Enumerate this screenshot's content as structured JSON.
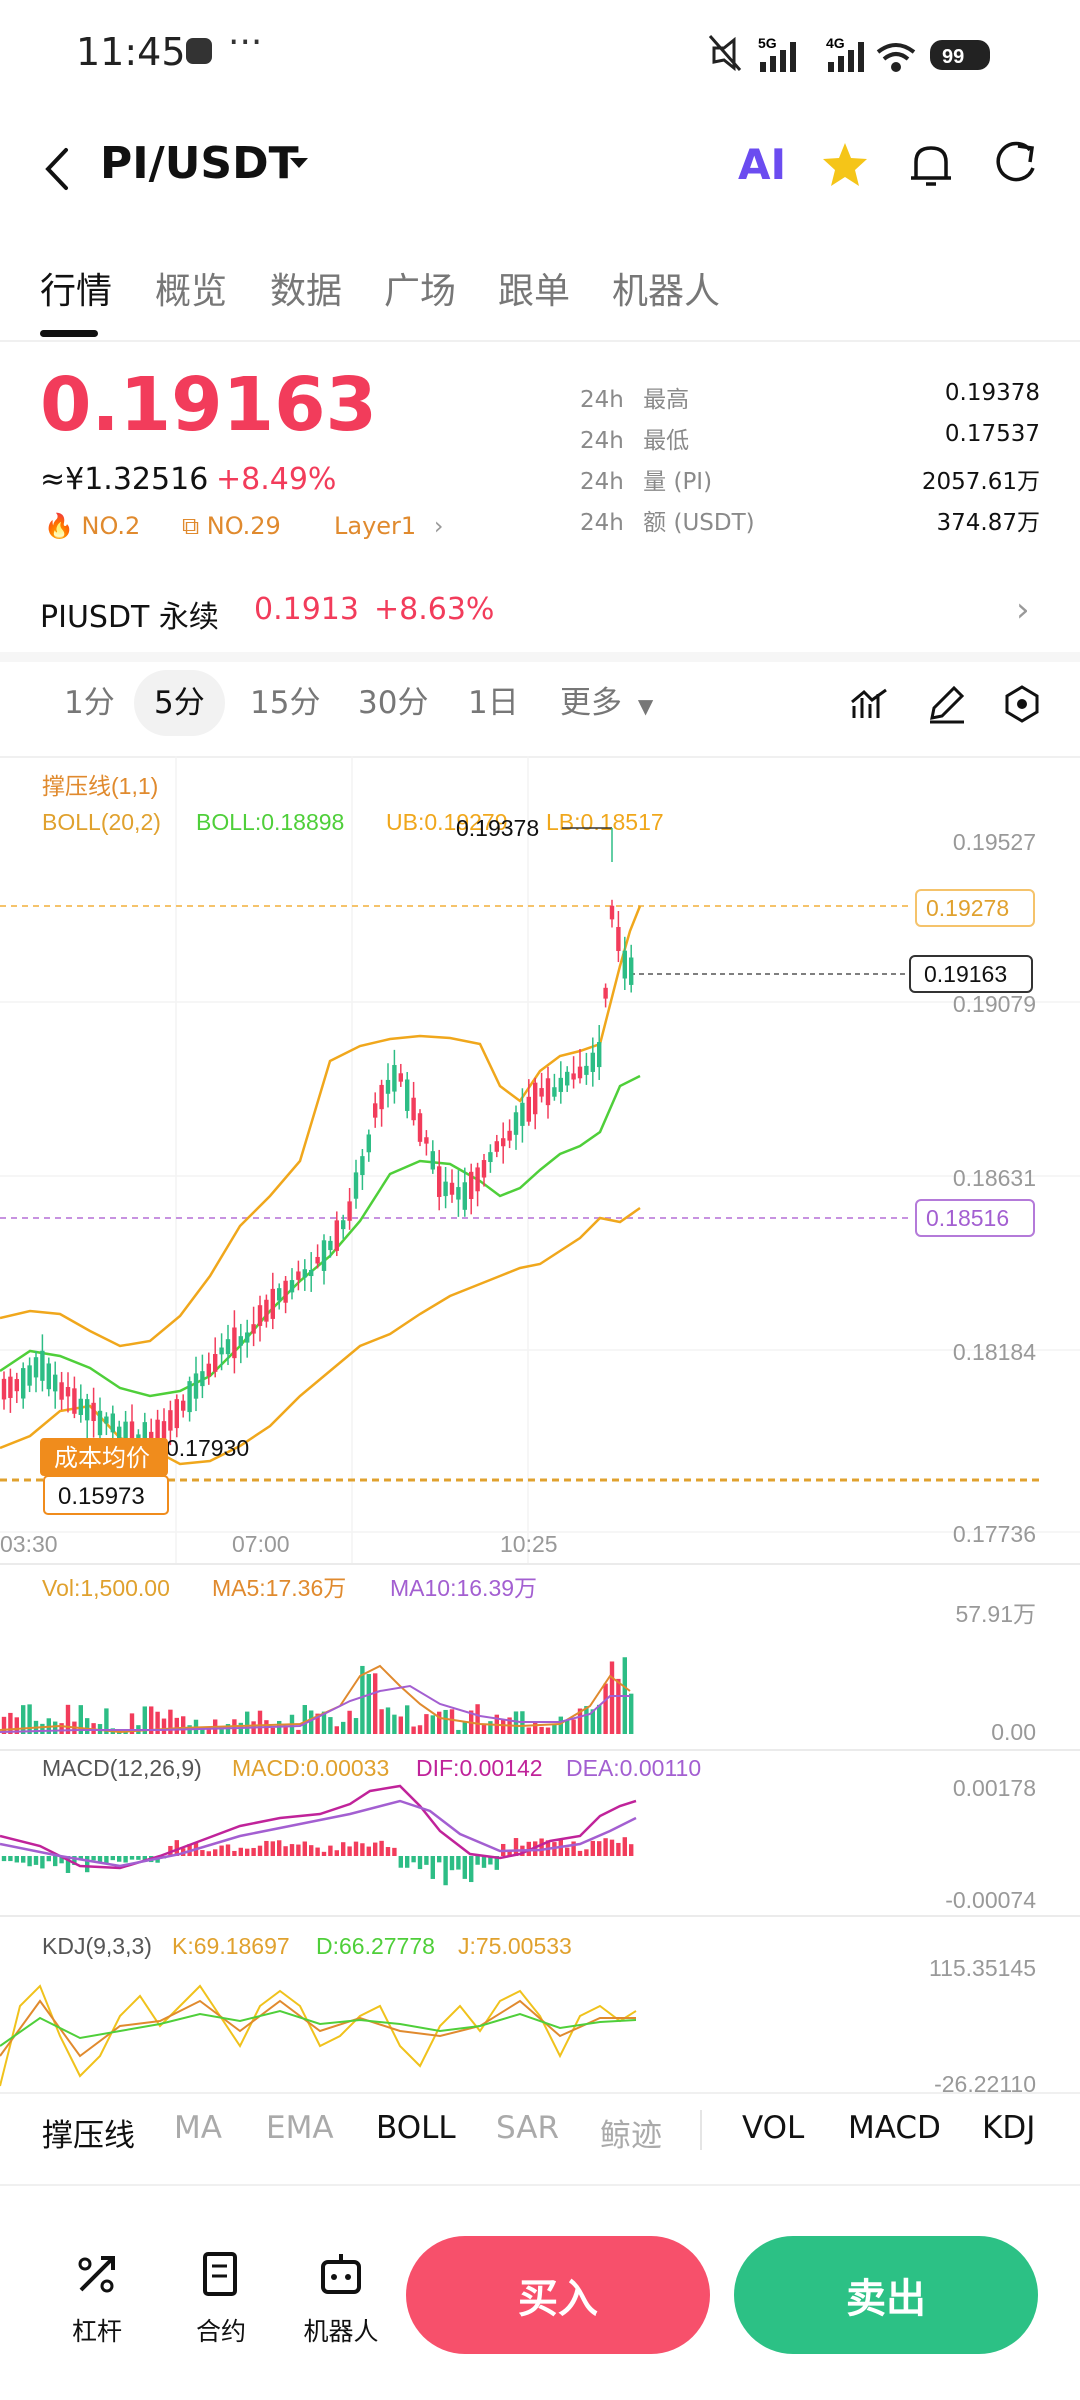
{
  "status_bar": {
    "time": "11:45",
    "dots": "···",
    "signal_5g": "5G",
    "signal_4g": "4G",
    "battery": "99"
  },
  "header": {
    "pair": "PI/USDT",
    "ai_label": "AI"
  },
  "tabs": [
    "行情",
    "概览",
    "数据",
    "广场",
    "跟单",
    "机器人"
  ],
  "price": {
    "last": "0.19163",
    "cny": "≈¥1.32516",
    "change": "+8.49%",
    "badge1": "NO.2",
    "badge2": "NO.29",
    "badge3": "Layer1",
    "stats": [
      {
        "prefix": "24h",
        "label": "最高",
        "value": "0.19378"
      },
      {
        "prefix": "24h",
        "label": "最低",
        "value": "0.17537"
      },
      {
        "prefix": "24h",
        "label": "量 (PI)",
        "value": "2057.61万"
      },
      {
        "prefix": "24h",
        "label": "额 (USDT)",
        "value": "374.87万"
      }
    ]
  },
  "perp": {
    "name": "PIUSDT 永续",
    "price": "0.1913",
    "change": "+8.63%"
  },
  "intervals": [
    "1分",
    "5分",
    "15分",
    "30分",
    "1日",
    "更多"
  ],
  "chart_text": {
    "overlay_title": "撑压线(1,1)",
    "boll_params": "BOLL(20,2)",
    "boll": "BOLL:0.18898",
    "ub": "UB:0.19279",
    "lb": "LB:0.18517",
    "y_ticks": [
      "0.19527",
      "0.19079",
      "0.18631",
      "0.18184",
      "0.17736"
    ],
    "high_label": "0.19378",
    "low_label": "0.17930",
    "resist": "0.19278",
    "last_tag": "0.19163",
    "support": "0.18516",
    "cost_label": "成本均价",
    "cost_value": "0.15973",
    "x_ticks": [
      "03:30",
      "07:00",
      "10:25"
    ],
    "vol": "Vol:1,500.00",
    "ma5": "MA5:17.36万",
    "ma10": "MA10:16.39万",
    "vol_max": "57.91万",
    "vol_min": "0.00",
    "macd_params": "MACD(12,26,9)",
    "macd": "MACD:0.00033",
    "dif": "DIF:0.00142",
    "dea": "DEA:0.00110",
    "macd_max": "0.00178",
    "macd_min": "-0.00074",
    "kdj_params": "KDJ(9,3,3)",
    "k": "K:69.18697",
    "d": "D:66.27778",
    "j": "J:75.00533",
    "kdj_max": "115.35145",
    "kdj_min": "-26.22110"
  },
  "indicator_tabs": [
    "撑压线",
    "MA",
    "EMA",
    "BOLL",
    "SAR",
    "鲸迹",
    "VOL",
    "MACD",
    "KDJ"
  ],
  "bottom": {
    "lever": "杠杆",
    "contract": "合约",
    "robot": "机器人",
    "buy": "买入",
    "sell": "卖出"
  },
  "colors": {
    "up": "#f23c5b",
    "down": "#2dbd85",
    "boll_mid": "#4fcf3a",
    "boll_band": "#f0a71c",
    "brand": "#f23c5b"
  }
}
